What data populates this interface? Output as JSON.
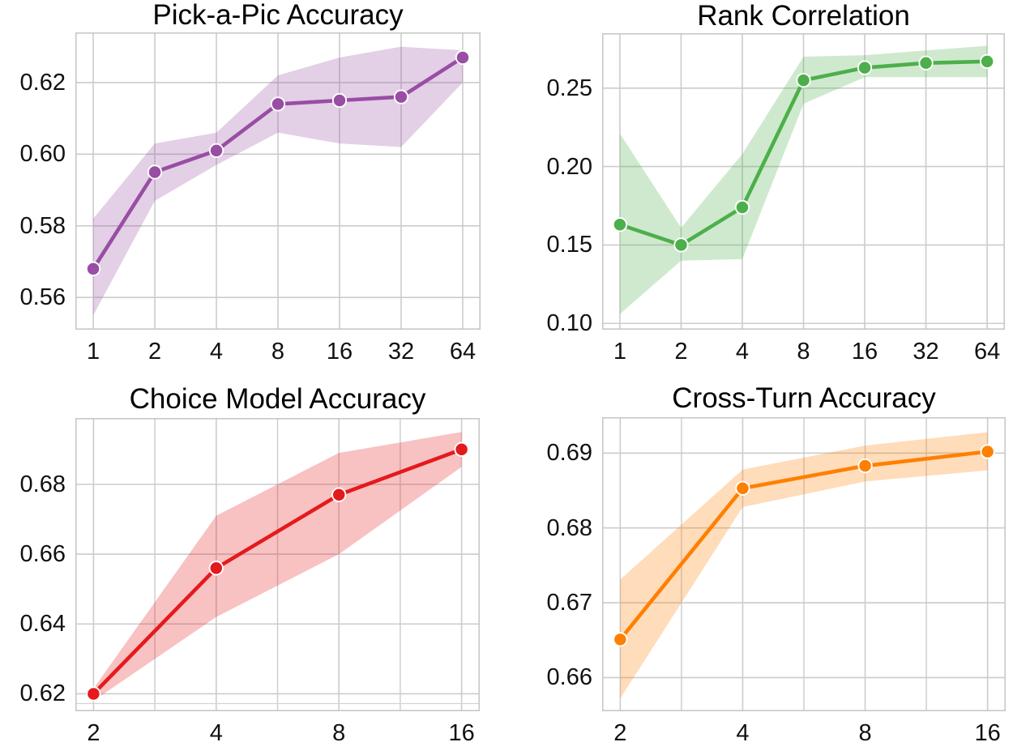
{
  "chart_data": [
    {
      "type": "line",
      "title": "Pick-a-Pic Accuracy",
      "color": "#984ea3",
      "band_opacity": 0.27,
      "xscale": "log2",
      "x": [
        1,
        2,
        4,
        8,
        16,
        32,
        64
      ],
      "xtick_labels": [
        "1",
        "2",
        "4",
        "8",
        "16",
        "32",
        "64"
      ],
      "y": [
        0.568,
        0.595,
        0.601,
        0.614,
        0.615,
        0.616,
        0.627
      ],
      "band_lower": [
        0.555,
        0.587,
        0.597,
        0.606,
        0.603,
        0.602,
        0.62
      ],
      "band_upper": [
        0.582,
        0.603,
        0.606,
        0.622,
        0.627,
        0.63,
        0.629
      ],
      "yticks": [
        0.56,
        0.58,
        0.6,
        0.62
      ],
      "ylim": [
        0.551,
        0.634
      ],
      "xpad_log2": 0.29,
      "minor_x_gridlines": false,
      "extra_hlines": [],
      "grid": true,
      "legend": "none"
    },
    {
      "type": "line",
      "title": "Rank Correlation",
      "color": "#4daf4a",
      "band_opacity": 0.27,
      "xscale": "log2",
      "x": [
        1,
        2,
        4,
        8,
        16,
        32,
        64
      ],
      "xtick_labels": [
        "1",
        "2",
        "4",
        "8",
        "16",
        "32",
        "64"
      ],
      "y": [
        0.163,
        0.15,
        0.174,
        0.255,
        0.263,
        0.266,
        0.267
      ],
      "band_lower": [
        0.106,
        0.14,
        0.141,
        0.24,
        0.257,
        0.257,
        0.257
      ],
      "band_upper": [
        0.221,
        0.161,
        0.208,
        0.27,
        0.271,
        0.274,
        0.277
      ],
      "yticks": [
        0.1,
        0.15,
        0.2,
        0.25
      ],
      "ylim": [
        0.096,
        0.285
      ],
      "xpad_log2": 0.29,
      "minor_x_gridlines": false,
      "extra_hlines": [],
      "grid": true,
      "legend": "none"
    },
    {
      "type": "line",
      "title": "Choice Model Accuracy",
      "color": "#e41a1c",
      "band_opacity": 0.27,
      "xscale": "log2",
      "x": [
        2,
        4,
        8,
        16
      ],
      "xtick_labels": [
        "2",
        "4",
        "8",
        "16"
      ],
      "y": [
        0.62,
        0.656,
        0.677,
        0.69
      ],
      "band_lower": [
        0.618,
        0.642,
        0.66,
        0.685
      ],
      "band_upper": [
        0.6215,
        0.671,
        0.689,
        0.695
      ],
      "yticks": [
        0.62,
        0.64,
        0.66,
        0.68
      ],
      "ylim": [
        0.615,
        0.699
      ],
      "xpad_log2": 0.148,
      "minor_x_gridlines": true,
      "extra_hlines": [
        0.6172
      ],
      "grid": true,
      "legend": "none"
    },
    {
      "type": "line",
      "title": "Cross-Turn Accuracy",
      "color": "#ff7f00",
      "band_opacity": 0.27,
      "xscale": "log2",
      "x": [
        2,
        4,
        8,
        16
      ],
      "xtick_labels": [
        "2",
        "4",
        "8",
        "16"
      ],
      "y": [
        0.6651,
        0.6853,
        0.6883,
        0.6902
      ],
      "band_lower": [
        0.6572,
        0.6828,
        0.6862,
        0.6877
      ],
      "band_upper": [
        0.6731,
        0.6878,
        0.691,
        0.6928
      ],
      "yticks": [
        0.66,
        0.67,
        0.68,
        0.69
      ],
      "ylim": [
        0.6555,
        0.6948
      ],
      "xpad_log2": 0.148,
      "minor_x_gridlines": true,
      "extra_hlines": [],
      "grid": true,
      "legend": "none"
    }
  ],
  "style": {
    "grid_color": "#cccccc",
    "spine_color": "#c8c8c8",
    "tick_label_color": "#111111",
    "title_color": "#000000",
    "background": "#ffffff"
  }
}
